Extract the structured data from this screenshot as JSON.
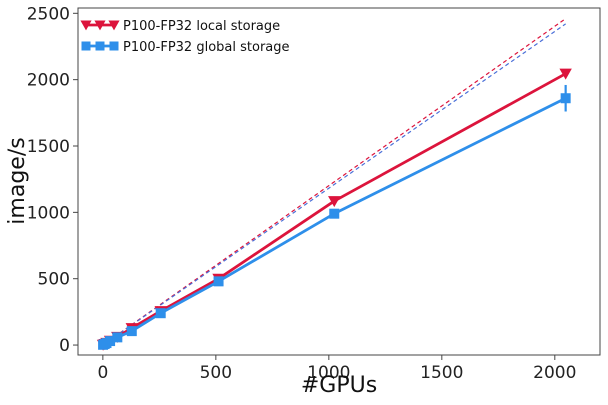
{
  "chart_data": {
    "type": "line",
    "xlabel": "#GPUs",
    "ylabel": "image/s",
    "xlim": [
      -110,
      2200
    ],
    "ylim": [
      -75,
      2540
    ],
    "xticks": [
      0,
      500,
      1000,
      1500,
      2000
    ],
    "yticks": [
      0,
      500,
      1000,
      1500,
      2000,
      2500
    ],
    "legend_position": "top-left",
    "grid": false,
    "series": [
      {
        "name": "P100-FP32 local storage",
        "color": "#dc143c",
        "marker": "triangle-down",
        "x": [
          1,
          8,
          16,
          32,
          64,
          128,
          256,
          512,
          1024,
          2048
        ],
        "y": [
          2,
          8,
          16,
          32,
          62,
          128,
          256,
          500,
          1085,
          2045
        ]
      },
      {
        "name": "P100-FP32 global storage",
        "color": "#2e8fea",
        "marker": "square",
        "x": [
          1,
          8,
          16,
          32,
          64,
          128,
          256,
          512,
          1024,
          2048
        ],
        "y": [
          2,
          8,
          15,
          30,
          58,
          105,
          240,
          480,
          990,
          1860
        ],
        "error": [
          0,
          0,
          0,
          0,
          0,
          0,
          0,
          0,
          20,
          100
        ]
      }
    ],
    "ideal_lines": [
      {
        "color": "#dc143c",
        "x": [
          0,
          2048
        ],
        "y": [
          0,
          2460
        ]
      },
      {
        "color": "#4a6fd8",
        "x": [
          0,
          2048
        ],
        "y": [
          0,
          2420
        ]
      }
    ]
  }
}
